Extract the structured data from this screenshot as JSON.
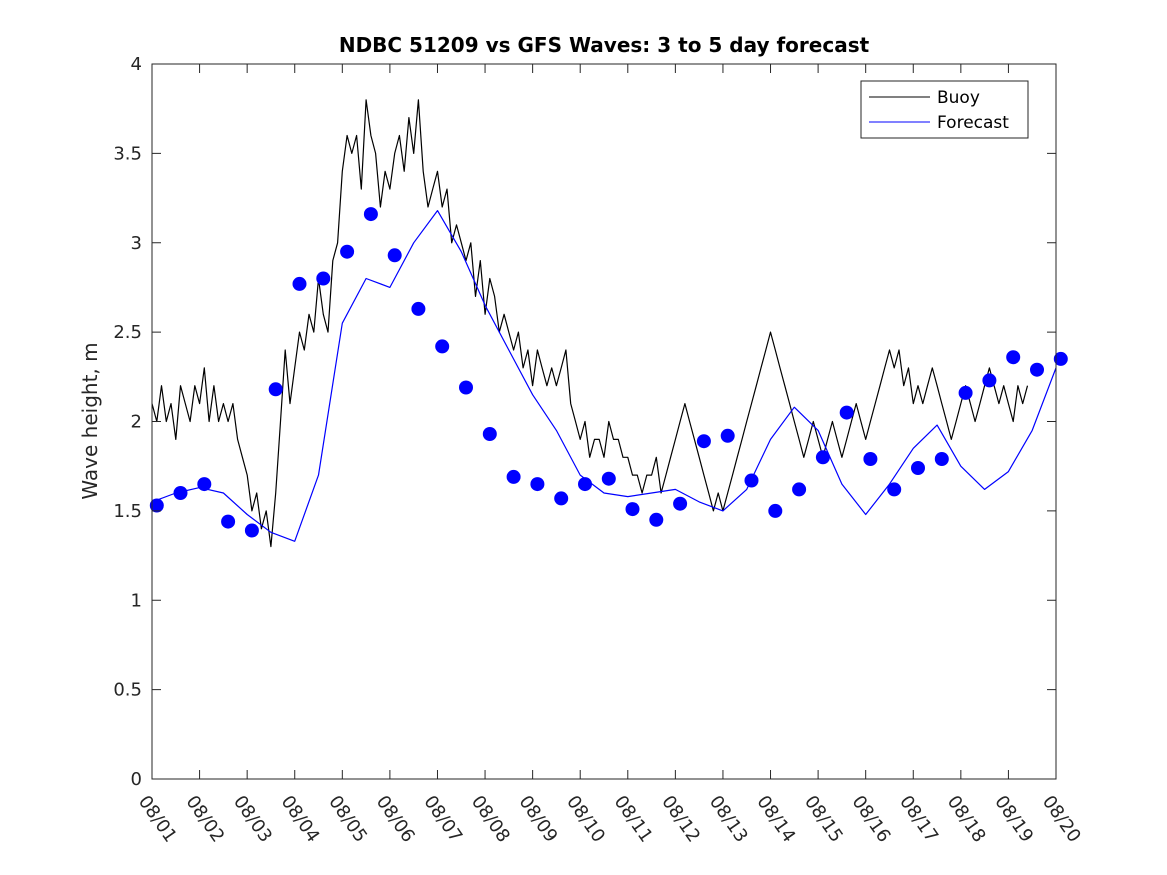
{
  "chart_data": {
    "type": "line",
    "title": "NDBC 51209 vs GFS Waves: 3 to 5 day forecast",
    "xlabel": "",
    "ylabel": "Wave height, m",
    "xlim": [
      0,
      19
    ],
    "ylim": [
      0,
      4
    ],
    "x_unit": "days since 08/01",
    "x_tick_labels": [
      "08/01",
      "08/02",
      "08/03",
      "08/04",
      "08/05",
      "08/06",
      "08/07",
      "08/08",
      "08/09",
      "08/10",
      "08/11",
      "08/12",
      "08/13",
      "08/14",
      "08/15",
      "08/16",
      "08/17",
      "08/18",
      "08/19",
      "08/20"
    ],
    "y_ticks": [
      0,
      0.5,
      1,
      1.5,
      2,
      2.5,
      3,
      3.5,
      4
    ],
    "y_tick_labels": [
      "0",
      "0.5",
      "1",
      "1.5",
      "2",
      "2.5",
      "3",
      "3.5",
      "4"
    ],
    "legend": {
      "position": "top-right",
      "entries": [
        "Buoy",
        "Forecast"
      ]
    },
    "series": [
      {
        "name": "Buoy",
        "color": "#000000",
        "x": [
          0.0,
          0.1,
          0.2,
          0.3,
          0.4,
          0.5,
          0.6,
          0.7,
          0.8,
          0.9,
          1.0,
          1.1,
          1.2,
          1.3,
          1.4,
          1.5,
          1.6,
          1.7,
          1.8,
          1.9,
          2.0,
          2.1,
          2.2,
          2.3,
          2.4,
          2.5,
          2.6,
          2.7,
          2.8,
          2.9,
          3.0,
          3.1,
          3.2,
          3.3,
          3.4,
          3.5,
          3.6,
          3.7,
          3.8,
          3.9,
          4.0,
          4.1,
          4.2,
          4.3,
          4.4,
          4.5,
          4.6,
          4.7,
          4.8,
          4.9,
          5.0,
          5.1,
          5.2,
          5.3,
          5.4,
          5.5,
          5.6,
          5.7,
          5.8,
          5.9,
          6.0,
          6.1,
          6.2,
          6.3,
          6.4,
          6.5,
          6.6,
          6.7,
          6.8,
          6.9,
          7.0,
          7.1,
          7.2,
          7.3,
          7.4,
          7.5,
          7.6,
          7.7,
          7.8,
          7.9,
          8.0,
          8.1,
          8.2,
          8.3,
          8.4,
          8.5,
          8.6,
          8.7,
          8.8,
          8.9,
          9.0,
          9.1,
          9.2,
          9.3,
          9.4,
          9.5,
          9.6,
          9.7,
          9.8,
          9.9,
          10.0,
          10.1,
          10.2,
          10.3,
          10.4,
          10.5,
          10.6,
          10.7,
          10.8,
          10.9,
          11.0,
          11.1,
          11.2,
          11.3,
          11.4,
          11.5,
          11.6,
          11.7,
          11.8,
          11.9,
          12.0,
          12.1,
          12.2,
          12.3,
          12.4,
          12.5,
          12.6,
          12.7,
          12.8,
          12.9,
          13.0,
          13.1,
          13.2,
          13.3,
          13.4,
          13.5,
          13.6,
          13.7,
          13.8,
          13.9,
          14.0,
          14.1,
          14.2,
          14.3,
          14.4,
          14.5,
          14.6,
          14.7,
          14.8,
          14.9,
          15.0,
          15.1,
          15.2,
          15.3,
          15.4,
          15.5,
          15.6,
          15.7,
          15.8,
          15.9,
          16.0,
          16.1,
          16.2,
          16.3,
          16.4,
          16.5,
          16.6,
          16.7,
          16.8,
          16.9,
          17.0,
          17.1,
          17.2,
          17.3,
          17.4,
          17.5,
          17.6,
          17.7,
          17.8,
          17.9,
          18.0,
          18.1,
          18.2,
          18.3,
          18.4
        ],
        "y": [
          2.1,
          2.0,
          2.2,
          2.0,
          2.1,
          1.9,
          2.2,
          2.1,
          2.0,
          2.2,
          2.1,
          2.3,
          2.0,
          2.2,
          2.0,
          2.1,
          2.0,
          2.1,
          1.9,
          1.8,
          1.7,
          1.5,
          1.6,
          1.4,
          1.5,
          1.3,
          1.6,
          2.0,
          2.4,
          2.1,
          2.3,
          2.5,
          2.4,
          2.6,
          2.5,
          2.8,
          2.6,
          2.5,
          2.9,
          3.0,
          3.4,
          3.6,
          3.5,
          3.6,
          3.3,
          3.8,
          3.6,
          3.5,
          3.2,
          3.4,
          3.3,
          3.5,
          3.6,
          3.4,
          3.7,
          3.5,
          3.8,
          3.4,
          3.2,
          3.3,
          3.4,
          3.2,
          3.3,
          3.0,
          3.1,
          3.0,
          2.9,
          3.0,
          2.7,
          2.9,
          2.6,
          2.8,
          2.7,
          2.5,
          2.6,
          2.5,
          2.4,
          2.5,
          2.3,
          2.4,
          2.2,
          2.4,
          2.3,
          2.2,
          2.3,
          2.2,
          2.3,
          2.4,
          2.1,
          2.0,
          1.9,
          2.0,
          1.8,
          1.9,
          1.9,
          1.8,
          2.0,
          1.9,
          1.9,
          1.8,
          1.8,
          1.7,
          1.7,
          1.6,
          1.7,
          1.7,
          1.8,
          1.6,
          1.7,
          1.8,
          1.9,
          2.0,
          2.1,
          2.0,
          1.9,
          1.8,
          1.7,
          1.6,
          1.5,
          1.6,
          1.5,
          1.6,
          1.7,
          1.8,
          1.9,
          2.0,
          2.1,
          2.2,
          2.3,
          2.4,
          2.5,
          2.4,
          2.3,
          2.2,
          2.1,
          2.0,
          1.9,
          1.8,
          1.9,
          2.0,
          1.9,
          1.8,
          1.9,
          2.0,
          1.9,
          1.8,
          1.9,
          2.0,
          2.1,
          2.0,
          1.9,
          2.0,
          2.1,
          2.2,
          2.3,
          2.4,
          2.3,
          2.4,
          2.2,
          2.3,
          2.1,
          2.2,
          2.1,
          2.2,
          2.3,
          2.2,
          2.1,
          2.0,
          1.9,
          2.0,
          2.1,
          2.2,
          2.1,
          2.0,
          2.1,
          2.2,
          2.3,
          2.2,
          2.1,
          2.2,
          2.1,
          2.0,
          2.2,
          2.1,
          2.2
        ]
      },
      {
        "name": "Forecast",
        "color": "#0000ff",
        "x": [
          0.0,
          0.5,
          1.0,
          1.5,
          2.0,
          2.5,
          3.0,
          3.5,
          4.0,
          4.5,
          5.0,
          5.5,
          6.0,
          6.5,
          7.0,
          7.5,
          8.0,
          8.5,
          9.0,
          9.5,
          10.0,
          10.5,
          11.0,
          11.5,
          12.0,
          12.5,
          13.0,
          13.5,
          14.0,
          14.5,
          15.0,
          15.5,
          16.0,
          16.5,
          17.0,
          17.5,
          18.0,
          18.5,
          19.0
        ],
        "y": [
          1.55,
          1.6,
          1.63,
          1.6,
          1.48,
          1.38,
          1.33,
          1.7,
          2.55,
          2.8,
          2.75,
          3.0,
          3.18,
          2.95,
          2.65,
          2.4,
          2.15,
          1.95,
          1.7,
          1.6,
          1.58,
          1.6,
          1.62,
          1.55,
          1.5,
          1.62,
          1.9,
          2.08,
          1.95,
          1.65,
          1.48,
          1.65,
          1.85,
          1.98,
          1.75,
          1.62,
          1.72,
          1.95,
          2.3
        ]
      },
      {
        "name": "Forecast (markers)",
        "color": "#0000ff",
        "x": [
          0.1,
          0.6,
          1.1,
          1.6,
          2.1,
          2.6,
          3.1,
          3.6,
          4.1,
          4.6,
          5.1,
          5.6,
          6.1,
          6.6,
          7.1,
          7.6,
          8.1,
          8.6,
          9.1,
          9.6,
          10.1,
          10.6,
          11.1,
          11.6,
          12.1,
          12.6,
          13.1,
          13.6,
          14.1,
          14.6,
          15.1,
          15.6,
          16.1,
          16.6,
          17.1,
          17.6,
          18.1,
          18.6,
          19.1
        ],
        "y": [
          1.53,
          1.6,
          1.65,
          1.44,
          1.39,
          2.18,
          2.77,
          2.8,
          2.95,
          3.16,
          2.93,
          2.63,
          2.42,
          2.19,
          1.93,
          1.69,
          1.65,
          1.57,
          1.65,
          1.68,
          1.51,
          1.45,
          1.54,
          1.89,
          1.92,
          1.67,
          1.5,
          1.62,
          1.8,
          2.05,
          1.79,
          1.62,
          1.74,
          1.79,
          2.16,
          2.23,
          2.36,
          2.29,
          2.35
        ]
      }
    ]
  }
}
